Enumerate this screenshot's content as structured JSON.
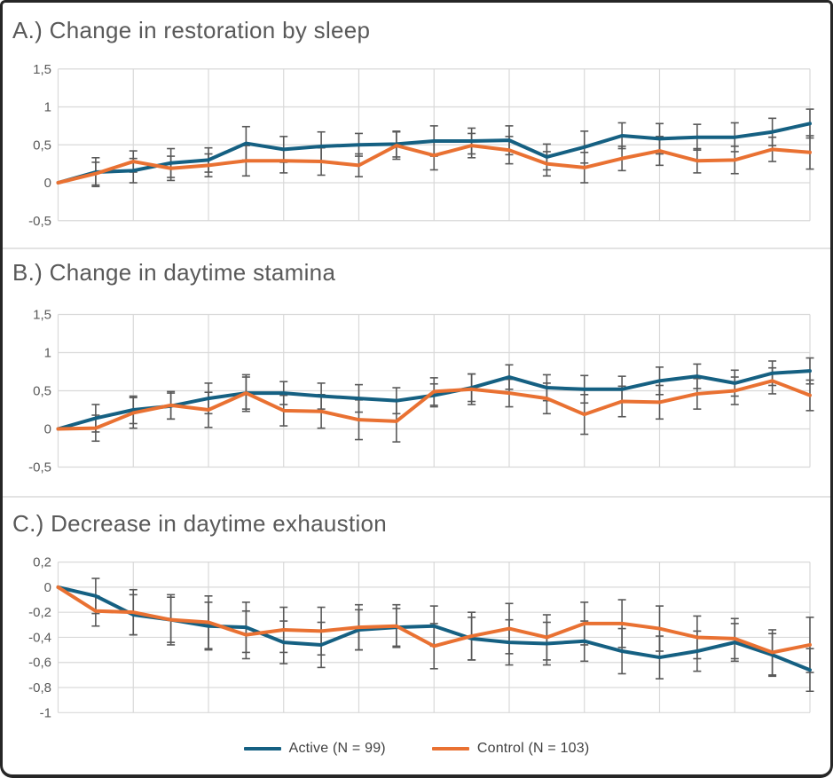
{
  "figure": {
    "colors": {
      "active": "#156082",
      "control": "#E97132",
      "error_bar": "#595959",
      "gridline": "#D9D9D9",
      "title_text": "#595959",
      "tick_text": "#595959",
      "border": "#262626"
    },
    "legend": {
      "position": "bottom-center",
      "items": [
        {
          "label": "Active (N = 99)",
          "color_key": "active"
        },
        {
          "label": "Control (N = 103)",
          "color_key": "control"
        }
      ]
    }
  },
  "chart_data": [
    {
      "type": "line",
      "title": "A.) Change in restoration by sleep",
      "x": [
        0,
        1,
        2,
        3,
        4,
        5,
        6,
        7,
        8,
        9,
        10,
        11,
        12,
        13,
        14,
        15,
        16,
        17,
        18,
        19,
        20
      ],
      "x_tick_labels": "none",
      "ylim": [
        -0.5,
        1.5
      ],
      "yticks": {
        "values": [
          1.5,
          1,
          0.5,
          0,
          -0.5
        ],
        "labels": [
          "1,5",
          "1",
          "0,5",
          "0",
          "-0,5"
        ]
      },
      "grid": true,
      "error_bars": true,
      "series": [
        {
          "name": "Active (N = 99)",
          "color_key": "active",
          "values": [
            0,
            0.14,
            0.16,
            0.26,
            0.3,
            0.52,
            0.44,
            0.48,
            0.5,
            0.51,
            0.55,
            0.55,
            0.56,
            0.34,
            0.47,
            0.62,
            0.58,
            0.6,
            0.6,
            0.67,
            0.78
          ],
          "errors": [
            0,
            0.19,
            0.16,
            0.19,
            0.16,
            0.22,
            0.17,
            0.19,
            0.15,
            0.17,
            0.2,
            0.17,
            0.19,
            0.17,
            0.21,
            0.17,
            0.2,
            0.17,
            0.19,
            0.18,
            0.19
          ]
        },
        {
          "name": "Control (N = 103)",
          "color_key": "control",
          "values": [
            0,
            0.12,
            0.28,
            0.19,
            0.23,
            0.29,
            0.29,
            0.28,
            0.23,
            0.49,
            0.36,
            0.49,
            0.43,
            0.25,
            0.2,
            0.32,
            0.42,
            0.29,
            0.3,
            0.44,
            0.4
          ],
          "errors": [
            0,
            0.15,
            0.14,
            0.16,
            0.15,
            0.2,
            0.16,
            0.18,
            0.15,
            0.18,
            0.19,
            0.16,
            0.18,
            0.16,
            0.2,
            0.16,
            0.19,
            0.16,
            0.18,
            0.16,
            0.22
          ]
        }
      ]
    },
    {
      "type": "line",
      "title": "B.) Change in daytime stamina",
      "x": [
        0,
        1,
        2,
        3,
        4,
        5,
        6,
        7,
        8,
        9,
        10,
        11,
        12,
        13,
        14,
        15,
        16,
        17,
        18,
        19,
        20
      ],
      "x_tick_labels": "none",
      "ylim": [
        -0.5,
        1.5
      ],
      "yticks": {
        "values": [
          1.5,
          1,
          0.5,
          0,
          -0.5
        ],
        "labels": [
          "1,5",
          "1",
          "0,5",
          "0",
          "-0,5"
        ]
      },
      "grid": true,
      "error_bars": true,
      "series": [
        {
          "name": "Active (N = 99)",
          "color_key": "active",
          "values": [
            0,
            0.14,
            0.25,
            0.3,
            0.4,
            0.47,
            0.47,
            0.43,
            0.4,
            0.37,
            0.44,
            0.54,
            0.68,
            0.54,
            0.52,
            0.52,
            0.63,
            0.69,
            0.6,
            0.73,
            0.76
          ],
          "errors": [
            0,
            0.18,
            0.18,
            0.17,
            0.2,
            0.21,
            0.15,
            0.17,
            0.18,
            0.17,
            0.15,
            0.18,
            0.16,
            0.17,
            0.18,
            0.17,
            0.18,
            0.16,
            0.17,
            0.16,
            0.17
          ]
        },
        {
          "name": "Control (N = 103)",
          "color_key": "control",
          "values": [
            0,
            0.01,
            0.21,
            0.31,
            0.25,
            0.47,
            0.24,
            0.23,
            0.12,
            0.1,
            0.49,
            0.52,
            0.47,
            0.4,
            0.19,
            0.36,
            0.35,
            0.46,
            0.5,
            0.63,
            0.44
          ],
          "errors": [
            0,
            0.17,
            0.2,
            0.18,
            0.23,
            0.24,
            0.2,
            0.22,
            0.26,
            0.27,
            0.18,
            0.2,
            0.18,
            0.2,
            0.26,
            0.2,
            0.22,
            0.2,
            0.18,
            0.17,
            0.2
          ]
        }
      ]
    },
    {
      "type": "line",
      "title": "C.) Decrease in daytime exhaustion",
      "x": [
        0,
        1,
        2,
        3,
        4,
        5,
        6,
        7,
        8,
        9,
        10,
        11,
        12,
        13,
        14,
        15,
        16,
        17,
        18,
        19,
        20
      ],
      "x_tick_labels": "none",
      "ylim": [
        -1.0,
        0.2
      ],
      "yticks": {
        "values": [
          0.2,
          0,
          -0.2,
          -0.4,
          -0.6,
          -0.8,
          -1
        ],
        "labels": [
          "0,2",
          "0",
          "-0,2",
          "-0,4",
          "-0,6",
          "-0,8",
          "-1"
        ]
      },
      "grid": true,
      "error_bars": true,
      "series": [
        {
          "name": "Active (N = 99)",
          "color_key": "active",
          "values": [
            0,
            -0.07,
            -0.22,
            -0.26,
            -0.31,
            -0.32,
            -0.44,
            -0.46,
            -0.34,
            -0.32,
            -0.31,
            -0.41,
            -0.44,
            -0.45,
            -0.43,
            -0.51,
            -0.56,
            -0.51,
            -0.44,
            -0.54,
            -0.66
          ],
          "errors": [
            0,
            0.14,
            0.16,
            0.18,
            0.19,
            0.2,
            0.17,
            0.18,
            0.16,
            0.15,
            0.16,
            0.17,
            0.18,
            0.17,
            0.16,
            0.18,
            0.17,
            0.16,
            0.15,
            0.17,
            0.17
          ]
        },
        {
          "name": "Control (N = 103)",
          "color_key": "control",
          "values": [
            0,
            -0.19,
            -0.2,
            -0.26,
            -0.28,
            -0.38,
            -0.34,
            -0.35,
            -0.32,
            -0.31,
            -0.47,
            -0.39,
            -0.33,
            -0.4,
            -0.29,
            -0.29,
            -0.33,
            -0.4,
            -0.41,
            -0.52,
            -0.46
          ],
          "errors": [
            0,
            0.12,
            0.18,
            0.2,
            0.21,
            0.19,
            0.18,
            0.19,
            0.18,
            0.17,
            0.18,
            0.19,
            0.2,
            0.18,
            0.17,
            0.19,
            0.18,
            0.17,
            0.16,
            0.18,
            0.22
          ]
        }
      ]
    }
  ]
}
